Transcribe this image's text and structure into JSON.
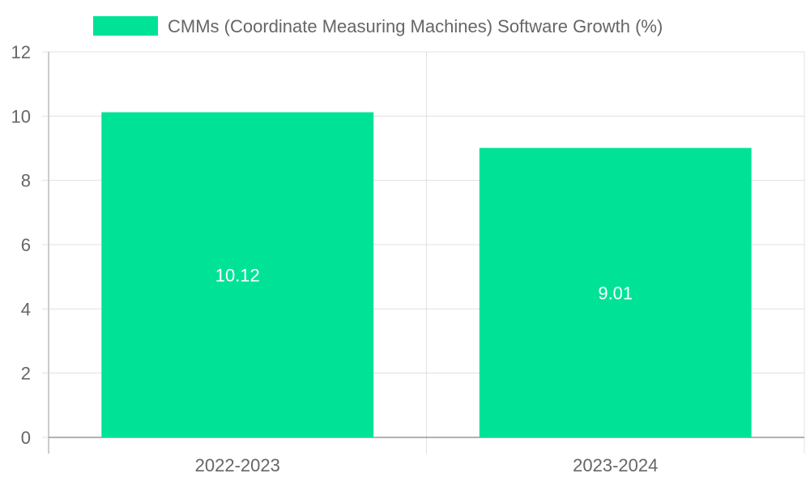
{
  "chart_data": {
    "type": "bar",
    "title": "",
    "xlabel": "",
    "ylabel": "",
    "categories": [
      "2022-2023",
      "2023-2024"
    ],
    "series": [
      {
        "name": "CMMs (Coordinate Measuring Machines) Software Growth (%)",
        "values": [
          10.12,
          9.01
        ],
        "color": "#00e396"
      }
    ],
    "data_labels": [
      "10.12",
      "9.01"
    ],
    "ylim": [
      0,
      12
    ],
    "yticks": [
      0,
      2,
      4,
      6,
      8,
      10,
      12
    ],
    "ytick_labels": [
      "0",
      "2",
      "4",
      "6",
      "8",
      "10",
      "12"
    ],
    "grid": true,
    "legend_position": "top-center"
  },
  "colors": {
    "bar": "#00e396",
    "grid": "#e0e0e0",
    "axis": "#999999",
    "text": "#666666",
    "data_label": "#ffffff"
  }
}
